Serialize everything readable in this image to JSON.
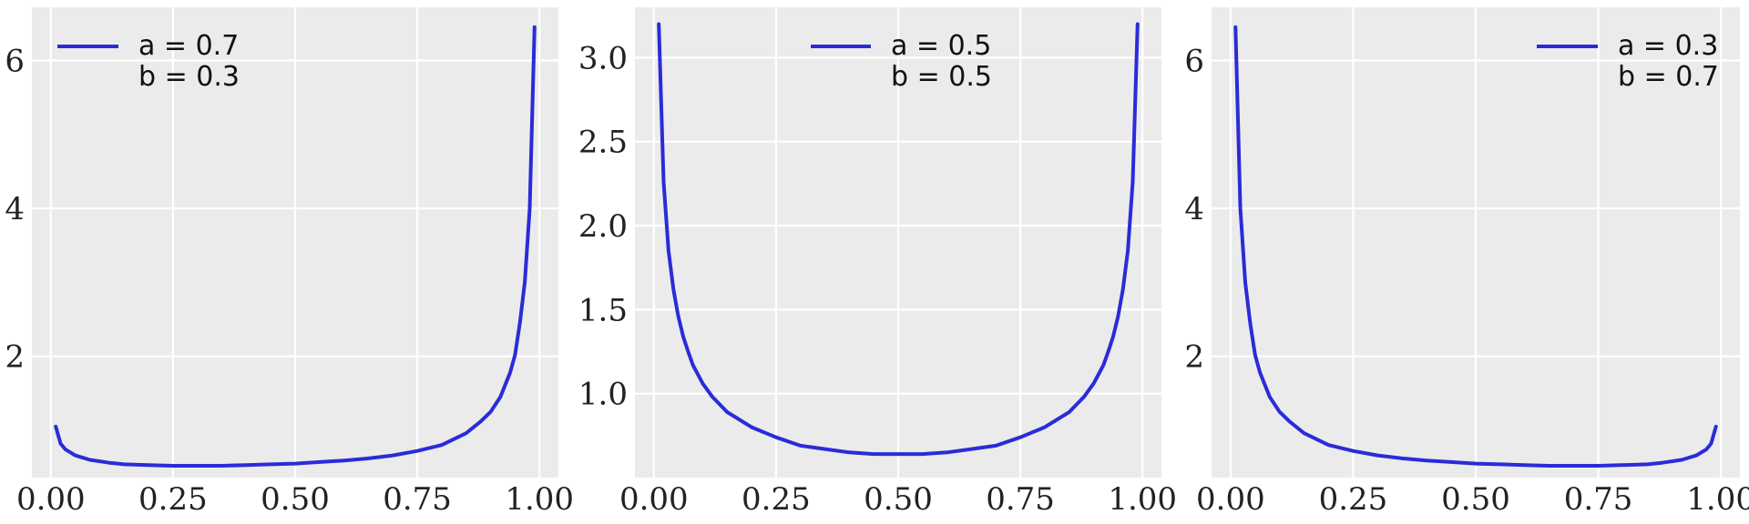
{
  "chart_data": [
    {
      "type": "line",
      "xlim": [
        0,
        1
      ],
      "ylim": [
        0.36,
        6.72
      ],
      "xticks": [
        0,
        0.25,
        0.5,
        0.75,
        1.0
      ],
      "xtick_labels": [
        "0.00",
        "0.25",
        "0.50",
        "0.75",
        "1.00"
      ],
      "yticks": [
        2,
        4,
        6
      ],
      "ytick_labels": [
        "2",
        "4",
        "6"
      ],
      "grid": true,
      "legend_position": "top-left",
      "series": [
        {
          "legend_lines": [
            "a = 0.7",
            "b = 0.3"
          ],
          "color": "#2b2bd9",
          "x": [
            0.01,
            0.02,
            0.03,
            0.05,
            0.08,
            0.12,
            0.15,
            0.2,
            0.25,
            0.3,
            0.35,
            0.4,
            0.45,
            0.5,
            0.55,
            0.6,
            0.65,
            0.7,
            0.75,
            0.8,
            0.85,
            0.88,
            0.9,
            0.92,
            0.94,
            0.95,
            0.96,
            0.97,
            0.98,
            0.99
          ],
          "y": [
            1.05,
            0.82,
            0.74,
            0.66,
            0.6,
            0.56,
            0.54,
            0.53,
            0.52,
            0.52,
            0.52,
            0.53,
            0.54,
            0.55,
            0.57,
            0.59,
            0.62,
            0.66,
            0.72,
            0.8,
            0.96,
            1.12,
            1.25,
            1.45,
            1.78,
            2.02,
            2.45,
            3.0,
            4.0,
            6.45
          ]
        }
      ]
    },
    {
      "type": "line",
      "xlim": [
        0,
        1
      ],
      "ylim": [
        0.5,
        3.3
      ],
      "xticks": [
        0,
        0.25,
        0.5,
        0.75,
        1.0
      ],
      "xtick_labels": [
        "0.00",
        "0.25",
        "0.50",
        "0.75",
        "1.00"
      ],
      "yticks": [
        1.0,
        1.5,
        2.0,
        2.5,
        3.0
      ],
      "ytick_labels": [
        "1.0",
        "1.5",
        "2.0",
        "2.5",
        "3.0"
      ],
      "grid": true,
      "legend_position": "top-center",
      "series": [
        {
          "legend_lines": [
            "a = 0.5",
            "b = 0.5"
          ],
          "color": "#2b2bd9",
          "x": [
            0.01,
            0.02,
            0.03,
            0.04,
            0.05,
            0.06,
            0.07,
            0.08,
            0.1,
            0.12,
            0.15,
            0.2,
            0.25,
            0.3,
            0.35,
            0.4,
            0.45,
            0.5,
            0.55,
            0.6,
            0.65,
            0.7,
            0.75,
            0.8,
            0.85,
            0.88,
            0.9,
            0.92,
            0.93,
            0.94,
            0.95,
            0.96,
            0.97,
            0.98,
            0.99
          ],
          "y": [
            3.2,
            2.26,
            1.85,
            1.62,
            1.46,
            1.34,
            1.25,
            1.17,
            1.06,
            0.98,
            0.89,
            0.8,
            0.74,
            0.69,
            0.67,
            0.65,
            0.64,
            0.64,
            0.64,
            0.65,
            0.67,
            0.69,
            0.74,
            0.8,
            0.89,
            0.98,
            1.06,
            1.17,
            1.25,
            1.34,
            1.46,
            1.62,
            1.85,
            2.26,
            3.2
          ]
        }
      ]
    },
    {
      "type": "line",
      "xlim": [
        0,
        1
      ],
      "ylim": [
        0.36,
        6.72
      ],
      "xticks": [
        0,
        0.25,
        0.5,
        0.75,
        1.0
      ],
      "xtick_labels": [
        "0.00",
        "0.25",
        "0.50",
        "0.75",
        "1.00"
      ],
      "yticks": [
        2,
        4,
        6
      ],
      "ytick_labels": [
        "2",
        "4",
        "6"
      ],
      "grid": true,
      "legend_position": "top-right",
      "series": [
        {
          "legend_lines": [
            "a = 0.3",
            "b = 0.7"
          ],
          "color": "#2b2bd9",
          "x": [
            0.01,
            0.02,
            0.03,
            0.04,
            0.05,
            0.06,
            0.08,
            0.1,
            0.12,
            0.15,
            0.2,
            0.25,
            0.3,
            0.35,
            0.4,
            0.45,
            0.5,
            0.55,
            0.6,
            0.65,
            0.7,
            0.75,
            0.8,
            0.85,
            0.88,
            0.92,
            0.95,
            0.97,
            0.98,
            0.99
          ],
          "y": [
            6.45,
            4.0,
            3.0,
            2.45,
            2.02,
            1.78,
            1.45,
            1.25,
            1.12,
            0.96,
            0.8,
            0.72,
            0.66,
            0.62,
            0.59,
            0.57,
            0.55,
            0.54,
            0.53,
            0.52,
            0.52,
            0.52,
            0.53,
            0.54,
            0.56,
            0.6,
            0.66,
            0.74,
            0.82,
            1.05
          ]
        }
      ]
    }
  ]
}
